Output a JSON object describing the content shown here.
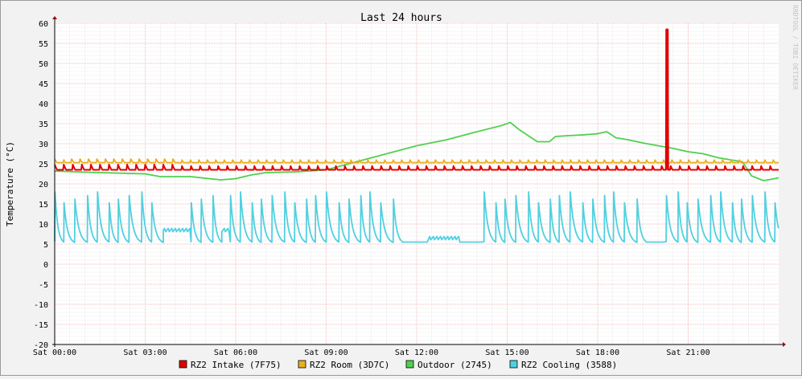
{
  "chart_data": {
    "type": "line",
    "title": "Last 24 hours",
    "ylabel": "Temperature (°C)",
    "xlabel": "",
    "watermark": "RRDTOOL / TOBI OETIKER",
    "ylim": [
      -20,
      60
    ],
    "y_ticks": [
      60,
      55,
      50,
      45,
      40,
      35,
      30,
      25,
      20,
      15,
      10,
      5,
      0,
      -5,
      -10,
      -15,
      -20
    ],
    "x_range_hours": [
      0,
      24
    ],
    "x_ticks": [
      {
        "h": 0,
        "label": "Sat 00:00"
      },
      {
        "h": 3,
        "label": "Sat 03:00"
      },
      {
        "h": 6,
        "label": "Sat 06:00"
      },
      {
        "h": 9,
        "label": "Sat 09:00"
      },
      {
        "h": 12,
        "label": "Sat 12:00"
      },
      {
        "h": 15,
        "label": "Sat 15:00"
      },
      {
        "h": 18,
        "label": "Sat 18:00"
      },
      {
        "h": 21,
        "label": "Sat 21:00"
      }
    ],
    "grid": true,
    "legend_position": "bottom",
    "background": "#ffffff",
    "series": [
      {
        "name": "RZ2 Intake (7F75)",
        "color": "#e00000",
        "pattern": "sawtooth",
        "base": 23.5,
        "amplitude": 1.3,
        "period_h": 0.3,
        "spike": {
          "h": 20.3,
          "value": 58.5
        }
      },
      {
        "name": "RZ2 Room (3D7C)",
        "color": "#e8b020",
        "pattern": "sawtooth",
        "base": 25.3,
        "amplitude": 0.9,
        "period_h": 0.28
      },
      {
        "name": "Outdoor (2745)",
        "color": "#50d050",
        "pattern": "points",
        "points": [
          [
            0.0,
            23.2
          ],
          [
            1.5,
            22.8
          ],
          [
            3.0,
            22.5
          ],
          [
            3.5,
            21.8
          ],
          [
            4.5,
            21.8
          ],
          [
            5.5,
            21.0
          ],
          [
            6.0,
            21.3
          ],
          [
            6.5,
            22.2
          ],
          [
            7.0,
            22.8
          ],
          [
            8.0,
            23.0
          ],
          [
            9.0,
            23.5
          ],
          [
            10.0,
            25.5
          ],
          [
            11.0,
            27.5
          ],
          [
            12.0,
            29.5
          ],
          [
            13.0,
            31.0
          ],
          [
            14.0,
            33.0
          ],
          [
            14.8,
            34.5
          ],
          [
            15.1,
            35.3
          ],
          [
            15.4,
            33.5
          ],
          [
            15.8,
            31.5
          ],
          [
            16.0,
            30.5
          ],
          [
            16.4,
            30.5
          ],
          [
            16.6,
            31.8
          ],
          [
            17.0,
            32.0
          ],
          [
            17.5,
            32.2
          ],
          [
            18.0,
            32.5
          ],
          [
            18.3,
            33.0
          ],
          [
            18.6,
            31.5
          ],
          [
            19.0,
            31.0
          ],
          [
            19.5,
            30.2
          ],
          [
            20.0,
            29.5
          ],
          [
            20.4,
            29.0
          ],
          [
            21.0,
            28.0
          ],
          [
            21.5,
            27.5
          ],
          [
            22.0,
            26.5
          ],
          [
            22.8,
            25.5
          ],
          [
            23.1,
            22.0
          ],
          [
            23.5,
            20.8
          ],
          [
            24.0,
            21.5
          ]
        ]
      },
      {
        "name": "RZ2 Cooling (3588)",
        "color": "#50d0e0",
        "pattern": "cooling",
        "min": 5.0,
        "max": 18.0,
        "idle": [
          [
            3.4,
            4.5,
            8.5
          ],
          [
            5.3,
            5.8,
            8.5
          ],
          [
            12.4,
            13.4,
            6.5
          ]
        ],
        "gaps": [
          [
            11.5,
            12.4
          ],
          [
            13.4,
            14.2
          ],
          [
            19.6,
            20.2
          ]
        ]
      }
    ]
  },
  "legend_swatch_colors": [
    "#e00000",
    "#e8b020",
    "#50d050",
    "#50d0e0"
  ]
}
